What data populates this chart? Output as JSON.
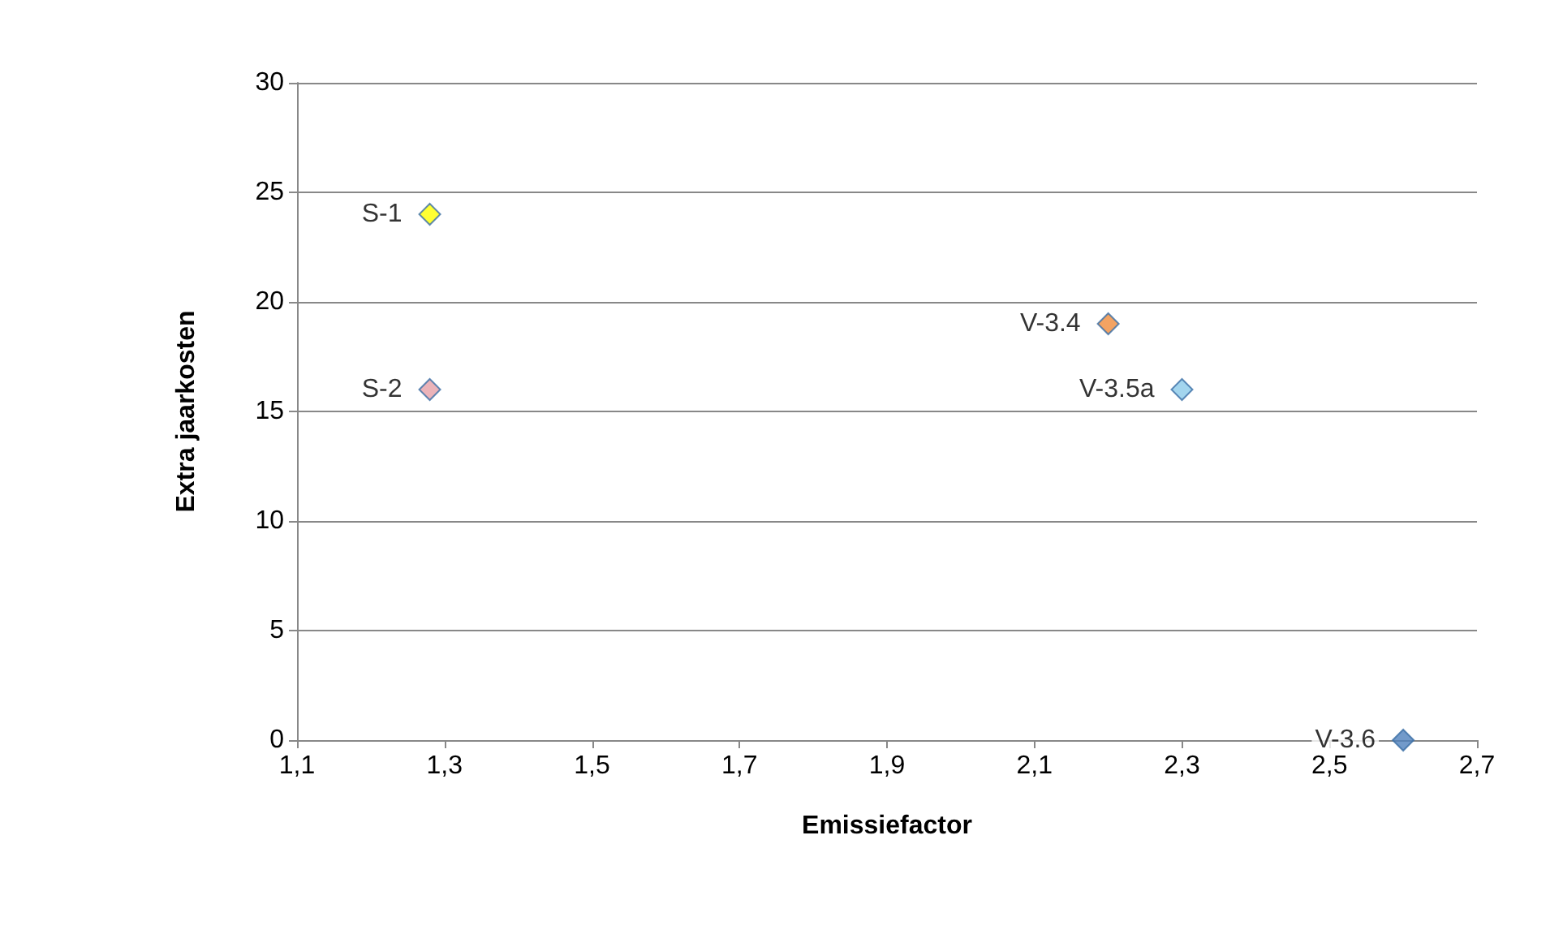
{
  "chart_data": {
    "type": "scatter",
    "xlabel": "Emissiefactor",
    "ylabel": "Extra jaarkosten",
    "xlim": [
      1.1,
      2.7
    ],
    "xticks": [
      {
        "value": 1.1,
        "label": "1,1"
      },
      {
        "value": 1.3,
        "label": "1,3"
      },
      {
        "value": 1.5,
        "label": "1,5"
      },
      {
        "value": 1.7,
        "label": "1,7"
      },
      {
        "value": 1.9,
        "label": "1,9"
      },
      {
        "value": 2.1,
        "label": "2,1"
      },
      {
        "value": 2.3,
        "label": "2,3"
      },
      {
        "value": 2.5,
        "label": "2,5"
      },
      {
        "value": 2.7,
        "label": "2,7"
      }
    ],
    "ylim": [
      0,
      30
    ],
    "yticks": [
      0,
      5,
      10,
      15,
      20,
      25,
      30
    ],
    "grid": "y",
    "legend": false,
    "marker": "diamond",
    "series": [
      {
        "name": "S-1",
        "color": "#ffff00",
        "x": [
          1.28
        ],
        "values": [
          24
        ]
      },
      {
        "name": "S-2",
        "color": "#e6a0a8",
        "x": [
          1.28
        ],
        "values": [
          16
        ]
      },
      {
        "name": "V-3.4",
        "color": "#f08c3c",
        "x": [
          2.2
        ],
        "values": [
          19
        ]
      },
      {
        "name": "V-3.5a",
        "color": "#8ccbea",
        "x": [
          2.3
        ],
        "values": [
          16
        ]
      },
      {
        "name": "V-3.6",
        "color": "#4f81bd",
        "x": [
          2.6
        ],
        "values": [
          0
        ]
      }
    ]
  }
}
